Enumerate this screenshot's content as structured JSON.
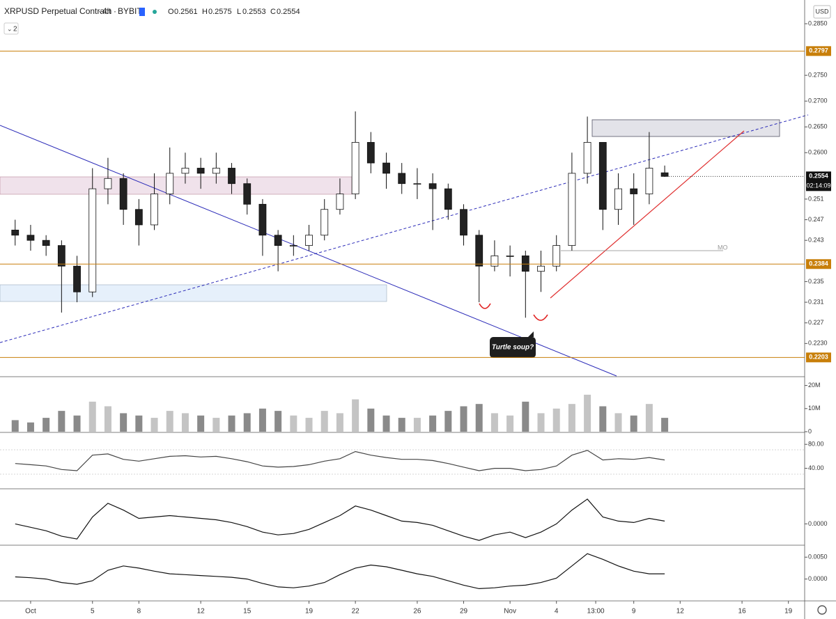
{
  "chart_data": [
    {
      "type": "candlestick",
      "symbol": "XRPUSD Perpetual Contract",
      "interval": "4h",
      "exchange": "BYBIT",
      "ohlc_legend": {
        "open_label": "O",
        "open": 0.2561,
        "high_label": "H",
        "high": 0.2575,
        "low_label": "L",
        "low": 0.2553,
        "close_label": "C",
        "close": 0.2554
      },
      "indicator_count": 2,
      "currency": "USD",
      "annotation": "Turtle soup?",
      "zone_label": "MO",
      "x": [
        0,
        1,
        2,
        3,
        4,
        5,
        6,
        7,
        8,
        9,
        10,
        11,
        12,
        13,
        14,
        15,
        16,
        17,
        18,
        19,
        20,
        21,
        22,
        23,
        24,
        25,
        26,
        27,
        28,
        29,
        30,
        31,
        32,
        33,
        34,
        35,
        36,
        37,
        38,
        39,
        40,
        41,
        42
      ],
      "open": [
        0.245,
        0.244,
        0.243,
        0.242,
        0.238,
        0.233,
        0.253,
        0.255,
        0.249,
        0.246,
        0.252,
        0.256,
        0.257,
        0.256,
        0.257,
        0.254,
        0.25,
        0.244,
        0.242,
        0.242,
        0.244,
        0.249,
        0.252,
        0.262,
        0.258,
        0.256,
        0.254,
        0.254,
        0.253,
        0.249,
        0.244,
        0.238,
        0.24,
        0.24,
        0.237,
        0.238,
        0.242,
        0.256,
        0.262,
        0.249,
        0.253,
        0.252,
        0.2561
      ],
      "high": [
        0.247,
        0.246,
        0.244,
        0.243,
        0.24,
        0.257,
        0.259,
        0.256,
        0.251,
        0.256,
        0.261,
        0.26,
        0.259,
        0.26,
        0.258,
        0.255,
        0.251,
        0.245,
        0.244,
        0.246,
        0.251,
        0.255,
        0.268,
        0.264,
        0.26,
        0.258,
        0.257,
        0.256,
        0.254,
        0.25,
        0.245,
        0.243,
        0.242,
        0.241,
        0.241,
        0.244,
        0.26,
        0.267,
        0.262,
        0.256,
        0.256,
        0.264,
        0.2575
      ],
      "low": [
        0.242,
        0.241,
        0.24,
        0.229,
        0.231,
        0.232,
        0.25,
        0.246,
        0.242,
        0.245,
        0.25,
        0.254,
        0.253,
        0.254,
        0.252,
        0.248,
        0.24,
        0.237,
        0.24,
        0.241,
        0.243,
        0.248,
        0.251,
        0.256,
        0.253,
        0.252,
        0.251,
        0.245,
        0.247,
        0.242,
        0.231,
        0.237,
        0.236,
        0.228,
        0.233,
        0.237,
        0.241,
        0.254,
        0.245,
        0.246,
        0.246,
        0.25,
        0.2553
      ],
      "close": [
        0.244,
        0.243,
        0.242,
        0.238,
        0.233,
        0.253,
        0.255,
        0.249,
        0.246,
        0.252,
        0.256,
        0.257,
        0.256,
        0.257,
        0.254,
        0.25,
        0.244,
        0.242,
        0.242,
        0.244,
        0.249,
        0.252,
        0.262,
        0.258,
        0.256,
        0.254,
        0.254,
        0.253,
        0.249,
        0.244,
        0.238,
        0.24,
        0.24,
        0.237,
        0.238,
        0.242,
        0.256,
        0.262,
        0.249,
        0.253,
        0.252,
        0.257,
        0.2554
      ],
      "xlim": [
        -0.98,
        51.05
      ],
      "xticks": [
        {
          "value": 1,
          "label": "Oct"
        },
        5,
        8,
        12,
        15,
        19,
        22,
        26,
        29,
        {
          "value": 32,
          "label": "Nov"
        },
        {
          "value": 35,
          "label": "4"
        },
        {
          "value": 37.54,
          "label": "13:00"
        },
        {
          "value": 40,
          "label": "9"
        },
        {
          "value": 43,
          "label": "12"
        },
        {
          "value": 47,
          "label": "16"
        },
        {
          "value": 50,
          "label": "19"
        }
      ],
      "ylim": [
        0.2167,
        0.2896
      ],
      "yticks": [
        {
          "value": 0.285,
          "label": "0.2850"
        },
        {
          "value": 0.275,
          "label": "0.2750"
        },
        {
          "value": 0.27,
          "label": "0.2700"
        },
        {
          "value": 0.265,
          "label": "0.2650"
        },
        {
          "value": 0.26,
          "label": "0.2600"
        },
        0.251,
        0.247,
        0.243,
        0.235,
        0.231,
        0.227,
        {
          "value": 0.223,
          "label": "0.2230"
        }
      ],
      "levels": [
        {
          "value": 0.2797,
          "color": "#c87f0a"
        },
        {
          "value": 0.2384,
          "color": "#c87f0a"
        },
        {
          "value": 0.2203,
          "color": "#c87f0a"
        }
      ],
      "last_price": 0.2554,
      "countdown": "02:14:09"
    },
    {
      "type": "bar",
      "values": [
        5,
        4,
        6,
        9,
        7,
        13,
        11,
        8,
        7,
        6,
        9,
        8,
        7,
        6,
        7,
        8,
        10,
        9,
        7,
        6,
        9,
        8,
        14,
        10,
        7,
        6,
        6,
        7,
        9,
        11,
        12,
        8,
        7,
        13,
        8,
        10,
        12,
        16,
        11,
        8,
        7,
        12,
        6
      ],
      "ylim": [
        0,
        23.5
      ],
      "yticks": [
        {
          "value": 20,
          "label": "20M"
        },
        {
          "value": 10,
          "label": "10M"
        },
        0
      ],
      "color": "#8a8a8a"
    },
    {
      "type": "line",
      "values": [
        48,
        46,
        44,
        38,
        36,
        62,
        64,
        55,
        52,
        56,
        60,
        61,
        59,
        60,
        56,
        51,
        44,
        42,
        43,
        46,
        52,
        56,
        68,
        62,
        58,
        55,
        55,
        53,
        48,
        42,
        36,
        40,
        40,
        36,
        38,
        44,
        62,
        70,
        54,
        56,
        55,
        58,
        54
      ],
      "ylim": [
        7,
        98.8
      ],
      "yticks": [
        {
          "value": 80,
          "label": "80.00"
        },
        {
          "value": 40,
          "label": "40.00"
        }
      ],
      "color": "#444444"
    },
    {
      "type": "line",
      "values": [
        0,
        -0.0005,
        -0.001,
        -0.0018,
        -0.0022,
        0.001,
        0.003,
        0.002,
        0.0008,
        0.001,
        0.0012,
        0.001,
        0.0008,
        0.0006,
        0.0002,
        -0.0004,
        -0.0012,
        -0.0016,
        -0.0014,
        -0.0008,
        0.0002,
        0.0012,
        0.0026,
        0.002,
        0.0012,
        0.0004,
        0.0002,
        -0.0002,
        -0.001,
        -0.0018,
        -0.0024,
        -0.0016,
        -0.0012,
        -0.002,
        -0.0012,
        0,
        0.002,
        0.0036,
        0.001,
        0.0004,
        0.0002,
        0.0008,
        0.0004
      ],
      "ylim": [
        -0.003,
        0.005
      ],
      "yticks": [
        {
          "value": 0,
          "label": "0.0000"
        }
      ],
      "color": "#111111"
    },
    {
      "type": "line",
      "values": [
        0.0005,
        0.0003,
        0,
        -0.0008,
        -0.0012,
        -0.0004,
        0.002,
        0.003,
        0.0025,
        0.0018,
        0.0012,
        0.001,
        0.0008,
        0.0006,
        0.0004,
        0,
        -0.001,
        -0.0018,
        -0.002,
        -0.0016,
        -0.0008,
        0.001,
        0.0025,
        0.0032,
        0.0028,
        0.002,
        0.0012,
        0.0006,
        -0.0004,
        -0.0014,
        -0.0022,
        -0.002,
        -0.0016,
        -0.0014,
        -0.0008,
        0.0002,
        0.003,
        0.0058,
        0.0045,
        0.003,
        0.0018,
        0.0012,
        0.0012
      ],
      "ylim": [
        -0.00484,
        0.00758
      ],
      "yticks": [
        {
          "value": 0.005,
          "label": "0.0050"
        },
        {
          "value": 0,
          "label": "0.0000"
        }
      ],
      "color": "#111111"
    }
  ]
}
